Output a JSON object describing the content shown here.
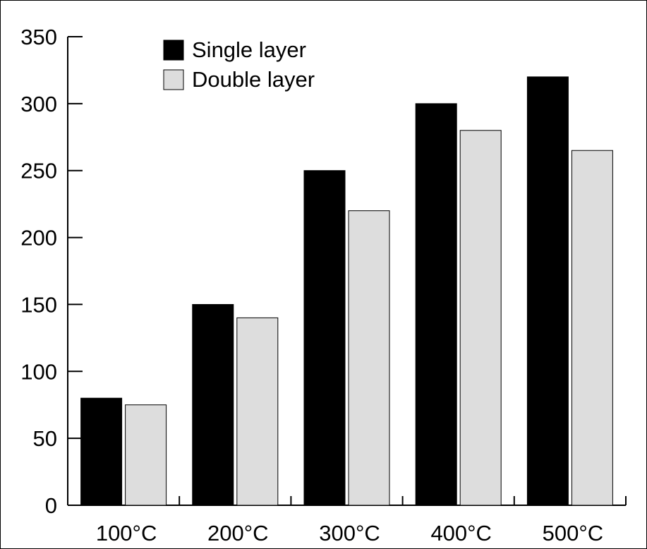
{
  "chart_data": {
    "type": "bar",
    "title": "",
    "xlabel": "",
    "ylabel": "",
    "categories": [
      "100°C",
      "200°C",
      "300°C",
      "400°C",
      "500°C"
    ],
    "series": [
      {
        "name": "Single layer",
        "values": [
          80,
          150,
          250,
          300,
          320
        ],
        "color": "#000000"
      },
      {
        "name": "Double layer",
        "values": [
          75,
          140,
          220,
          280,
          265
        ],
        "color": "#dddddd"
      }
    ],
    "ylim": [
      0,
      350
    ],
    "yticks": [
      0,
      50,
      100,
      150,
      200,
      250,
      300,
      350
    ],
    "grid": false,
    "legend_position": "top-left"
  }
}
